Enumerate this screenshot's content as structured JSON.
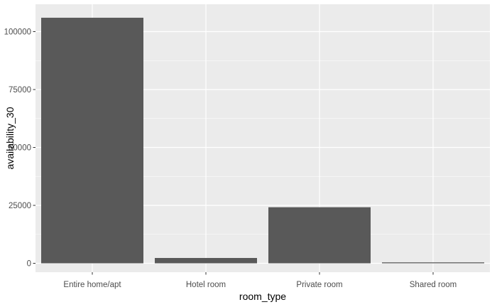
{
  "chart_data": {
    "type": "bar",
    "xlabel": "room_type",
    "ylabel": "availability_30",
    "categories": [
      "Entire home/apt",
      "Hotel room",
      "Private room",
      "Shared room"
    ],
    "values": [
      106000,
      2300,
      24200,
      400
    ],
    "ylim": [
      0,
      110000
    ],
    "yticks": [
      0,
      25000,
      50000,
      75000,
      100000
    ],
    "ytick_labels": [
      "0",
      "25000",
      "50000",
      "75000",
      "100000"
    ],
    "grid": true,
    "legend": "none",
    "colors": {
      "panel_bg": "#ebebeb",
      "grid_major": "#ffffff",
      "bar_fill": "#595959",
      "tick_text": "#4d4d4d",
      "tick_mark": "#333333"
    }
  }
}
